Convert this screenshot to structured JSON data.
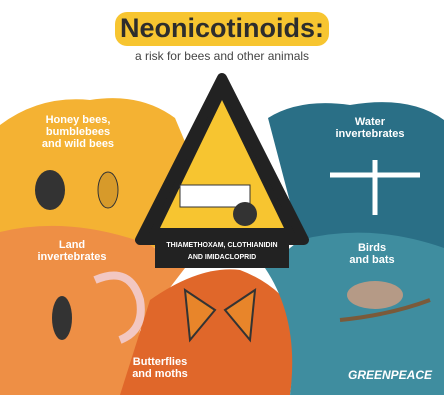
{
  "header": {
    "title": "Neonicotinoids:",
    "subtitle": "a risk for bees and other animals"
  },
  "sections": [
    {
      "lines": [
        "Honey bees,",
        "bumblebees",
        "and wild bees"
      ]
    },
    {
      "lines": [
        "Water",
        "invertebrates"
      ]
    },
    {
      "lines": [
        "Land",
        "invertebrates"
      ]
    },
    {
      "lines": [
        "Birds",
        "and bats"
      ]
    },
    {
      "lines": [
        "Butterflies",
        "and moths"
      ]
    }
  ],
  "warning": {
    "lines": [
      "THIAMETHOXAM, CLOTHIANIDIN",
      "AND IMIDACLOPRID"
    ]
  },
  "logo": "GREENPEACE"
}
